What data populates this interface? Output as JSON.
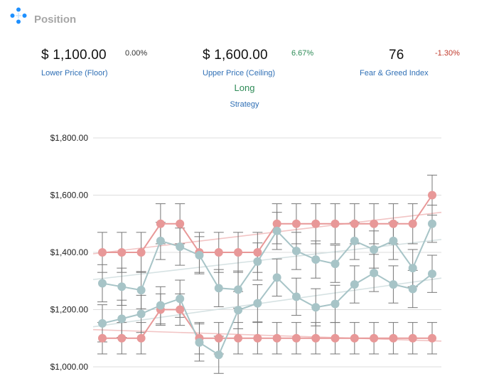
{
  "header": {
    "title": "Position"
  },
  "floor": {
    "value": "$ 1,100.00",
    "change": "0.00%",
    "label": "Lower Price (Floor)",
    "change_color": "#333333"
  },
  "ceiling": {
    "value": "$ 1,600.00",
    "change": "6.67%",
    "label": "Upper Price (Ceiling)",
    "change_color": "#2e8b57"
  },
  "fear_greed": {
    "value": "76",
    "change": "-1.30%",
    "label": "Fear & Greed Index",
    "change_color": "#c0392b"
  },
  "strategy": {
    "value": "Long",
    "label": "Strategy"
  },
  "colors": {
    "ceiling_series": "#e89898",
    "floor_series": "#e89898",
    "price_series": "#a7c4c7",
    "band_series": "#a7c4c7",
    "error_bar": "#777777",
    "grid": "#dddddd",
    "accent": "#2f6fb5"
  },
  "icons": {
    "header": "move-arrows-icon"
  },
  "chart_data": {
    "type": "line",
    "ylim": [
      1000,
      1800
    ],
    "yticks": [
      1000,
      1200,
      1400,
      1600,
      1800
    ],
    "ytick_labels": [
      "$1,000.00",
      "$1,200.00",
      "$1,400.00",
      "$1,600.00",
      "$1,800.00"
    ],
    "x": [
      1,
      2,
      3,
      4,
      5,
      6,
      7,
      8,
      9,
      10,
      11,
      12,
      13,
      14,
      15,
      16,
      17,
      18
    ],
    "series": [
      {
        "key": "ceiling",
        "values": [
          1400,
          1400,
          1400,
          1500,
          1500,
          1400,
          1400,
          1400,
          1400,
          1500,
          1500,
          1500,
          1500,
          1500,
          1500,
          1500,
          1500,
          1600
        ],
        "error": 70
      },
      {
        "key": "floor",
        "values": [
          1100,
          1100,
          1100,
          1200,
          1200,
          1100,
          1100,
          1100,
          1100,
          1100,
          1100,
          1100,
          1100,
          1100,
          1100,
          1100,
          1100,
          1100
        ],
        "error": 55
      },
      {
        "key": "price_high",
        "values": [
          1292,
          1280,
          1268,
          1440,
          1420,
          1390,
          1275,
          1270,
          1368,
          1475,
          1405,
          1375,
          1360,
          1440,
          1410,
          1440,
          1345,
          1500
        ],
        "error": 65
      },
      {
        "key": "price_low",
        "values": [
          1152,
          1168,
          1185,
          1215,
          1238,
          1085,
          1042,
          1198,
          1222,
          1312,
          1245,
          1208,
          1220,
          1288,
          1328,
          1288,
          1272,
          1325
        ],
        "error": 65
      }
    ],
    "trendlines": [
      {
        "key": "ceiling_trend",
        "from": 1395,
        "to": 1540
      },
      {
        "key": "price_high_trend",
        "from": 1305,
        "to": 1445
      },
      {
        "key": "price_low_trend",
        "from": 1140,
        "to": 1310
      },
      {
        "key": "floor_trend",
        "from": 1130,
        "to": 1090
      }
    ]
  }
}
